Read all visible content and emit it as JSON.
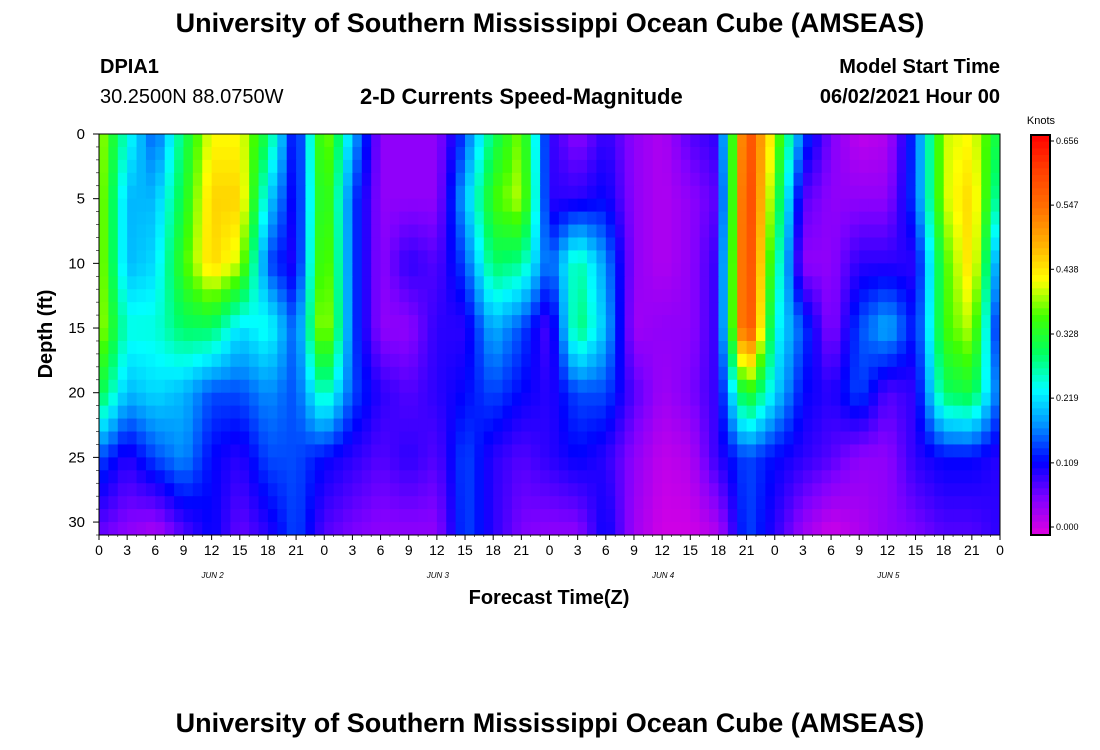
{
  "header": {
    "title": "University of Southern Mississippi Ocean Cube (AMSEAS)",
    "station_id": "DPIA1",
    "coords": "30.2500N  88.0750W",
    "plot_title": "2-D Currents Speed-Magnitude",
    "model_start_label": "Model Start Time",
    "model_start_value": "06/02/2021 Hour 00"
  },
  "footer": {
    "title": "University of Southern Mississippi Ocean Cube (AMSEAS)"
  },
  "chart_data": {
    "type": "heatmap",
    "xlabel": "Forecast Time(Z)",
    "ylabel": "Depth (ft)",
    "x_ticks": [
      "0",
      "3",
      "6",
      "9",
      "12",
      "15",
      "18",
      "21",
      "0",
      "3",
      "6",
      "9",
      "12",
      "15",
      "18",
      "21",
      "0",
      "3",
      "6",
      "9",
      "12",
      "15",
      "18",
      "21",
      "0",
      "3",
      "6",
      "9",
      "12",
      "15",
      "18",
      "21",
      "0"
    ],
    "x_range_hours": [
      0,
      96
    ],
    "date_labels": [
      {
        "text": "JUN 2",
        "hour": 12
      },
      {
        "text": "JUN 3",
        "hour": 36
      },
      {
        "text": "JUN 4",
        "hour": 60
      },
      {
        "text": "JUN 5",
        "hour": 84
      }
    ],
    "y_ticks": [
      "0",
      "5",
      "10",
      "15",
      "20",
      "25",
      "30"
    ],
    "y_range_ft": [
      0,
      31
    ],
    "y_inverted": true,
    "colorbar": {
      "unit": "Knots",
      "tick_labels": [
        "0.656",
        "0.547",
        "0.438",
        "0.328",
        "0.219",
        "0.109",
        "0.000"
      ],
      "min": 0.0,
      "max": 0.656,
      "colors": [
        "#e000e0",
        "#8000ff",
        "#0000ff",
        "#0090ff",
        "#00ffff",
        "#00ff60",
        "#40ff00",
        "#ffff00",
        "#ffb000",
        "#ff7000",
        "#ff4000",
        "#ff0000"
      ]
    },
    "speed_knots": {
      "depths_ft": [
        0,
        5,
        10,
        15,
        20,
        25,
        31
      ],
      "hours": [
        0,
        3,
        6,
        9,
        12,
        15,
        18,
        21,
        24,
        27,
        30,
        33,
        36,
        39,
        42,
        45,
        48,
        51,
        54,
        57,
        60,
        63,
        66,
        69,
        72,
        75,
        78,
        81,
        84,
        87,
        90,
        93,
        96
      ],
      "rows": [
        [
          0.4,
          0.25,
          0.15,
          0.3,
          0.42,
          0.42,
          0.3,
          0.1,
          0.4,
          0.2,
          0.05,
          0.05,
          0.05,
          0.15,
          0.3,
          0.38,
          0.1,
          0.05,
          0.1,
          0.05,
          0.03,
          0.08,
          0.1,
          0.6,
          0.4,
          0.15,
          0.06,
          0.02,
          0.03,
          0.15,
          0.4,
          0.42,
          0.3
        ],
        [
          0.4,
          0.2,
          0.2,
          0.32,
          0.45,
          0.45,
          0.22,
          0.1,
          0.38,
          0.15,
          0.05,
          0.05,
          0.05,
          0.2,
          0.35,
          0.4,
          0.1,
          0.1,
          0.12,
          0.05,
          0.03,
          0.05,
          0.08,
          0.62,
          0.35,
          0.08,
          0.05,
          0.05,
          0.05,
          0.15,
          0.4,
          0.45,
          0.25
        ],
        [
          0.4,
          0.2,
          0.22,
          0.35,
          0.45,
          0.4,
          0.15,
          0.1,
          0.4,
          0.15,
          0.05,
          0.1,
          0.08,
          0.15,
          0.3,
          0.28,
          0.15,
          0.28,
          0.18,
          0.05,
          0.03,
          0.05,
          0.1,
          0.62,
          0.3,
          0.05,
          0.05,
          0.1,
          0.1,
          0.1,
          0.35,
          0.45,
          0.15
        ],
        [
          0.4,
          0.25,
          0.25,
          0.3,
          0.3,
          0.22,
          0.25,
          0.15,
          0.42,
          0.15,
          0.05,
          0.05,
          0.1,
          0.1,
          0.2,
          0.15,
          0.08,
          0.3,
          0.2,
          0.04,
          0.05,
          0.05,
          0.1,
          0.62,
          0.25,
          0.15,
          0.05,
          0.15,
          0.2,
          0.12,
          0.35,
          0.4,
          0.1
        ],
        [
          0.32,
          0.2,
          0.22,
          0.2,
          0.15,
          0.15,
          0.18,
          0.15,
          0.28,
          0.15,
          0.1,
          0.08,
          0.1,
          0.12,
          0.15,
          0.12,
          0.1,
          0.15,
          0.15,
          0.08,
          0.04,
          0.06,
          0.1,
          0.35,
          0.22,
          0.12,
          0.1,
          0.15,
          0.08,
          0.1,
          0.3,
          0.32,
          0.15
        ],
        [
          0.15,
          0.1,
          0.15,
          0.18,
          0.12,
          0.1,
          0.15,
          0.15,
          0.12,
          0.1,
          0.08,
          0.1,
          0.08,
          0.15,
          0.1,
          0.08,
          0.1,
          0.12,
          0.1,
          0.05,
          0.02,
          0.03,
          0.1,
          0.15,
          0.12,
          0.1,
          0.08,
          0.05,
          0.05,
          0.1,
          0.12,
          0.12,
          0.1
        ],
        [
          0.07,
          0.05,
          0.03,
          0.08,
          0.12,
          0.07,
          0.1,
          0.15,
          0.08,
          0.06,
          0.05,
          0.05,
          0.05,
          0.15,
          0.1,
          0.06,
          0.05,
          0.05,
          0.12,
          0.04,
          0.01,
          0.01,
          0.03,
          0.15,
          0.1,
          0.04,
          0.01,
          0.03,
          0.05,
          0.06,
          0.08,
          0.08,
          0.1
        ]
      ]
    }
  }
}
